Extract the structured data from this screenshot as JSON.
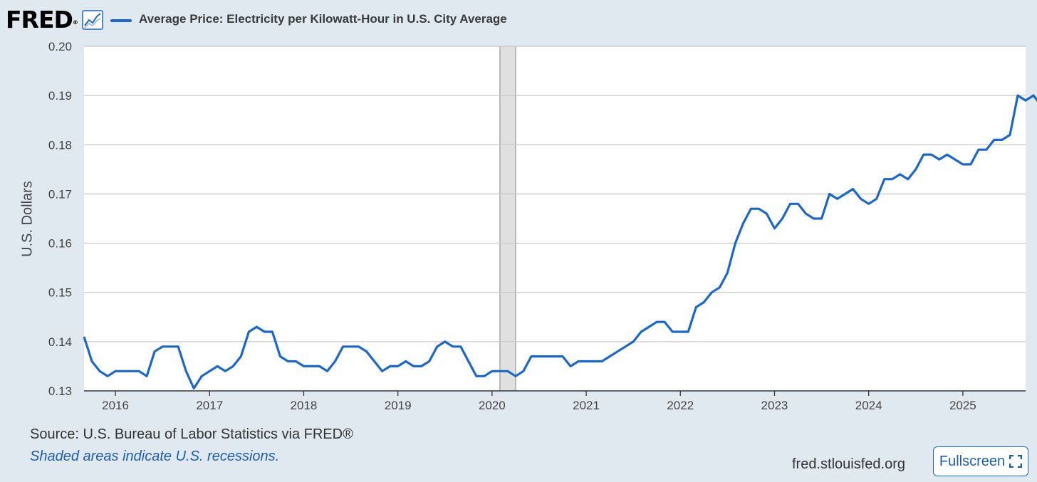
{
  "header": {
    "logo_text": "FRED",
    "logo_mark": "®",
    "logo_icon": "line-chart-icon",
    "legend_label": "Average Price: Electricity per Kilowatt-Hour in U.S. City Average"
  },
  "footer": {
    "source": "Source: U.S. Bureau of Labor Statistics via FRED®",
    "note": "Shaded areas indicate U.S. recessions.",
    "site": "fred.stlouisfed.org",
    "fullscreen_label": "Fullscreen",
    "fullscreen_icon": "expand-icon"
  },
  "chart_data": {
    "type": "line",
    "title": "Average Price: Electricity per Kilowatt-Hour in U.S. City Average",
    "ylabel": "U.S. Dollars",
    "xlabel": "",
    "ylim": [
      0.13,
      0.2
    ],
    "yticks": [
      "0.13",
      "0.14",
      "0.15",
      "0.16",
      "0.17",
      "0.18",
      "0.19",
      "0.20"
    ],
    "xticks": [
      "2016",
      "2017",
      "2018",
      "2019",
      "2020",
      "2021",
      "2022",
      "2023",
      "2024",
      "2025"
    ],
    "x_start": "2015-09",
    "x_end": "2025-09",
    "grid": "horizontal",
    "color": "#1967d2",
    "recession": {
      "start": "2020-02",
      "end": "2020-04",
      "color": "#e0e0e0"
    },
    "series": [
      {
        "name": "Average Price: Electricity per Kilowatt-Hour in U.S. City Average",
        "start": "2015-09",
        "values": [
          0.141,
          0.136,
          0.134,
          0.133,
          0.134,
          0.134,
          0.134,
          0.134,
          0.133,
          0.138,
          0.139,
          0.139,
          0.139,
          0.134,
          0.1305,
          0.133,
          0.134,
          0.135,
          0.134,
          0.135,
          0.137,
          0.142,
          0.143,
          0.142,
          0.142,
          0.137,
          0.136,
          0.136,
          0.135,
          0.135,
          0.135,
          0.134,
          0.136,
          0.139,
          0.139,
          0.139,
          0.138,
          0.136,
          0.134,
          0.135,
          0.135,
          0.136,
          0.135,
          0.135,
          0.136,
          0.139,
          0.14,
          0.139,
          0.139,
          0.136,
          0.133,
          0.133,
          0.134,
          0.134,
          0.134,
          0.133,
          0.134,
          0.137,
          0.137,
          0.137,
          0.137,
          0.137,
          0.135,
          0.136,
          0.136,
          0.136,
          0.136,
          0.137,
          0.138,
          0.139,
          0.14,
          0.142,
          0.143,
          0.144,
          0.144,
          0.142,
          0.142,
          0.142,
          0.147,
          0.148,
          0.15,
          0.151,
          0.154,
          0.16,
          0.164,
          0.167,
          0.167,
          0.166,
          0.163,
          0.165,
          0.168,
          0.168,
          0.166,
          0.165,
          0.165,
          0.17,
          0.169,
          0.17,
          0.171,
          0.169,
          0.168,
          0.169,
          0.173,
          0.173,
          0.174,
          0.173,
          0.175,
          0.178,
          0.178,
          0.177,
          0.178,
          0.177,
          0.176,
          0.176,
          0.179,
          0.179,
          0.181,
          0.181,
          0.182,
          0.19,
          0.189,
          0.19,
          0.188
        ]
      }
    ]
  }
}
